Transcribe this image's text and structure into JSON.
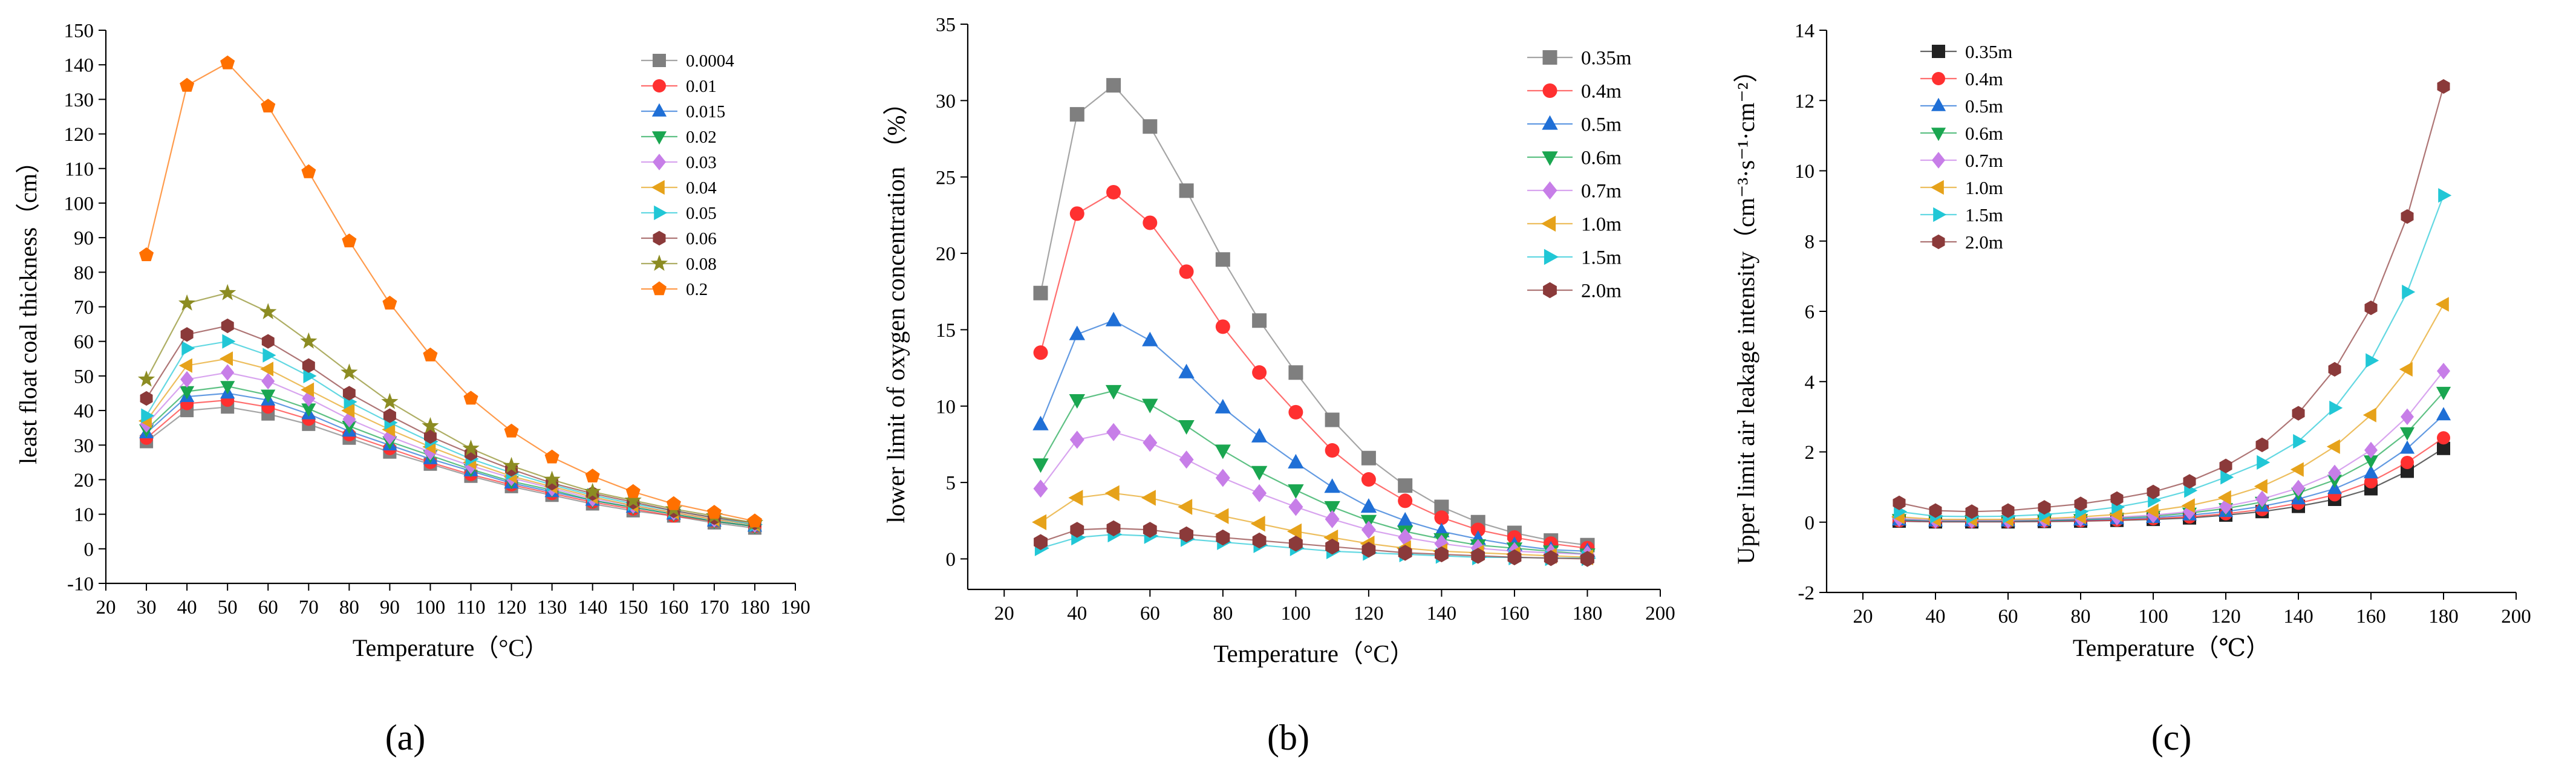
{
  "figure": {
    "panel_labels": [
      "(a)",
      "(b)",
      "(c)"
    ]
  },
  "chart_data": [
    {
      "panel": "(a)",
      "type": "line",
      "title": "",
      "xlabel": "Temperature（°C）",
      "ylabel": "least float coal thickness（cm）",
      "xlim": [
        20,
        190
      ],
      "ylim": [
        -10,
        150
      ],
      "xticks": [
        20,
        30,
        40,
        50,
        60,
        70,
        80,
        90,
        100,
        110,
        120,
        130,
        140,
        150,
        160,
        170,
        180,
        190
      ],
      "yticks": [
        -10,
        0,
        10,
        20,
        30,
        40,
        50,
        60,
        70,
        80,
        90,
        100,
        110,
        120,
        130,
        140,
        150
      ],
      "x": [
        30,
        40,
        50,
        60,
        70,
        80,
        90,
        100,
        110,
        120,
        130,
        140,
        150,
        160,
        170,
        180
      ],
      "legend_position": "top-right",
      "series": [
        {
          "name": "0.0004",
          "marker": "square",
          "color": "#7f7f7f",
          "values": [
            31,
            40,
            41,
            39,
            36,
            32,
            28,
            24.5,
            21,
            18,
            15.5,
            13,
            11,
            9.5,
            7.5,
            6
          ]
        },
        {
          "name": "0.01",
          "marker": "circle",
          "color": "#ff3030",
          "values": [
            32,
            42,
            43,
            41,
            37.5,
            33,
            29,
            25,
            21.5,
            18.5,
            16,
            13.5,
            11.5,
            9.5,
            8,
            6.5
          ]
        },
        {
          "name": "0.015",
          "marker": "triangle-up",
          "color": "#1f6fd6",
          "values": [
            33.5,
            44,
            45,
            43,
            39,
            34,
            30,
            26,
            22.5,
            19,
            16.5,
            14,
            12,
            10,
            8,
            6.5
          ]
        },
        {
          "name": "0.02",
          "marker": "triangle-down",
          "color": "#1aa650",
          "values": [
            34.5,
            45.5,
            47,
            44.5,
            40.5,
            35.5,
            31,
            27,
            23,
            19.5,
            17,
            14,
            12,
            10,
            8,
            6.5
          ]
        },
        {
          "name": "0.03",
          "marker": "diamond",
          "color": "#c77ee8",
          "values": [
            36,
            49,
            51,
            48.5,
            43.5,
            37.5,
            32.5,
            28,
            24,
            20.5,
            17.5,
            14.5,
            12.5,
            10.5,
            8.5,
            7
          ]
        },
        {
          "name": "0.04",
          "marker": "triangle-left",
          "color": "#e6a21a",
          "values": [
            37,
            53,
            55,
            52,
            46,
            40,
            34.5,
            29.5,
            25,
            21,
            18,
            15,
            12.5,
            10.5,
            8.5,
            7
          ]
        },
        {
          "name": "0.05",
          "marker": "triangle-right",
          "color": "#21c7d6",
          "values": [
            38.5,
            58,
            60,
            56,
            50,
            42.5,
            36.5,
            31,
            26,
            22,
            18.5,
            15.5,
            13,
            11,
            9,
            7
          ]
        },
        {
          "name": "0.06",
          "marker": "hexagon",
          "color": "#8b3a3a",
          "values": [
            43.5,
            62,
            64.5,
            60,
            53,
            45,
            38.5,
            32.5,
            27.5,
            23,
            19,
            16,
            13.5,
            11,
            9,
            7.5
          ]
        },
        {
          "name": "0.08",
          "marker": "star",
          "color": "#8c8c22",
          "values": [
            49,
            71,
            74,
            68.5,
            60,
            51,
            42.5,
            35.5,
            29,
            24,
            20,
            16.5,
            14,
            11.5,
            9.5,
            7.5
          ]
        },
        {
          "name": "0.2",
          "marker": "pentagon",
          "color": "#ff7000",
          "values": [
            85,
            134,
            140.5,
            128,
            109,
            89,
            71,
            56,
            43.5,
            34,
            26.5,
            21,
            16.5,
            13,
            10.5,
            8
          ]
        }
      ]
    },
    {
      "panel": "(b)",
      "type": "line",
      "title": "",
      "xlabel": "Temperature（°C）",
      "ylabel": "lower limit of oxygen concentration （%）",
      "xlim": [
        10,
        200
      ],
      "ylim": [
        -2,
        35
      ],
      "xticks": [
        20,
        40,
        60,
        80,
        100,
        120,
        140,
        160,
        180,
        200
      ],
      "yticks": [
        0,
        5,
        10,
        15,
        20,
        25,
        30,
        35
      ],
      "x": [
        30,
        40,
        50,
        60,
        70,
        80,
        90,
        100,
        110,
        120,
        130,
        140,
        150,
        160,
        170,
        180
      ],
      "legend_position": "top-right",
      "series": [
        {
          "name": "0.35m",
          "marker": "square",
          "color": "#7f7f7f",
          "values": [
            17.4,
            29.1,
            31,
            28.3,
            24.1,
            19.6,
            15.6,
            12.2,
            9.1,
            6.6,
            4.8,
            3.4,
            2.4,
            1.7,
            1.2,
            0.9
          ]
        },
        {
          "name": "0.4m",
          "marker": "circle",
          "color": "#ff3030",
          "values": [
            13.5,
            22.6,
            24,
            22,
            18.8,
            15.2,
            12.2,
            9.6,
            7.1,
            5.2,
            3.8,
            2.7,
            1.9,
            1.4,
            1,
            0.7
          ]
        },
        {
          "name": "0.5m",
          "marker": "triangle-up",
          "color": "#1f6fd6",
          "values": [
            8.8,
            14.7,
            15.6,
            14.3,
            12.2,
            9.9,
            8,
            6.3,
            4.7,
            3.4,
            2.5,
            1.8,
            1.3,
            0.9,
            0.6,
            0.5
          ]
        },
        {
          "name": "0.6m",
          "marker": "triangle-down",
          "color": "#1aa650",
          "values": [
            6.2,
            10.4,
            11,
            10.1,
            8.7,
            7.1,
            5.7,
            4.5,
            3.4,
            2.5,
            1.8,
            1.3,
            0.9,
            0.7,
            0.5,
            0.3
          ]
        },
        {
          "name": "0.7m",
          "marker": "diamond",
          "color": "#c77ee8",
          "values": [
            4.6,
            7.8,
            8.3,
            7.6,
            6.5,
            5.3,
            4.3,
            3.4,
            2.6,
            1.9,
            1.4,
            1,
            0.7,
            0.5,
            0.4,
            0.3
          ]
        },
        {
          "name": "1.0m",
          "marker": "triangle-left",
          "color": "#e6a21a",
          "values": [
            2.4,
            4,
            4.3,
            4,
            3.4,
            2.8,
            2.3,
            1.8,
            1.4,
            1,
            0.7,
            0.5,
            0.4,
            0.3,
            0.2,
            0.1
          ]
        },
        {
          "name": "1.5m",
          "marker": "triangle-right",
          "color": "#21c7d6",
          "values": [
            0.7,
            1.4,
            1.6,
            1.5,
            1.3,
            1.1,
            0.9,
            0.7,
            0.5,
            0.4,
            0.3,
            0.2,
            0.1,
            0.1,
            0.05,
            0.05
          ]
        },
        {
          "name": "2.0m",
          "marker": "hexagon",
          "color": "#8b3a3a",
          "values": [
            1.1,
            1.9,
            2,
            1.9,
            1.6,
            1.4,
            1.2,
            1,
            0.8,
            0.6,
            0.4,
            0.3,
            0.2,
            0.1,
            0.05,
            0
          ]
        }
      ]
    },
    {
      "panel": "(c)",
      "type": "line",
      "title": "",
      "xlabel": "Temperature（℃）",
      "ylabel": "Upper limit air leakage intensity（cm⁻³·s⁻¹·cm⁻²）",
      "xlim": [
        10,
        200
      ],
      "ylim": [
        -2,
        14
      ],
      "xticks": [
        20,
        40,
        60,
        80,
        100,
        120,
        140,
        160,
        180,
        200
      ],
      "yticks": [
        -2,
        0,
        2,
        4,
        6,
        8,
        10,
        12,
        14
      ],
      "x": [
        30,
        40,
        50,
        60,
        70,
        80,
        90,
        100,
        110,
        120,
        130,
        140,
        150,
        160,
        170,
        180
      ],
      "legend_position": "top-left",
      "series": [
        {
          "name": "0.35m",
          "marker": "square",
          "color": "#222222",
          "values": [
            0.03,
            0.01,
            0.01,
            0.01,
            0.02,
            0.03,
            0.05,
            0.08,
            0.12,
            0.2,
            0.3,
            0.45,
            0.65,
            0.95,
            1.45,
            2.1
          ]
        },
        {
          "name": "0.4m",
          "marker": "circle",
          "color": "#ff3030",
          "values": [
            0.04,
            0.02,
            0.02,
            0.02,
            0.03,
            0.04,
            0.06,
            0.1,
            0.15,
            0.24,
            0.36,
            0.54,
            0.78,
            1.15,
            1.7,
            2.4
          ]
        },
        {
          "name": "0.5m",
          "marker": "triangle-up",
          "color": "#1f6fd6",
          "values": [
            0.06,
            0.03,
            0.03,
            0.03,
            0.04,
            0.06,
            0.09,
            0.13,
            0.2,
            0.3,
            0.45,
            0.66,
            0.95,
            1.4,
            2.1,
            3.05
          ]
        },
        {
          "name": "0.6m",
          "marker": "triangle-down",
          "color": "#1aa650",
          "values": [
            0.08,
            0.04,
            0.04,
            0.04,
            0.05,
            0.08,
            0.12,
            0.17,
            0.26,
            0.39,
            0.57,
            0.83,
            1.2,
            1.75,
            2.55,
            3.7
          ]
        },
        {
          "name": "0.7m",
          "marker": "diamond",
          "color": "#c77ee8",
          "values": [
            0.1,
            0.05,
            0.05,
            0.05,
            0.07,
            0.1,
            0.14,
            0.2,
            0.3,
            0.45,
            0.66,
            0.97,
            1.4,
            2.05,
            3,
            4.3
          ]
        },
        {
          "name": "1.0m",
          "marker": "triangle-left",
          "color": "#e6a21a",
          "values": [
            0.15,
            0.08,
            0.08,
            0.08,
            0.1,
            0.15,
            0.22,
            0.32,
            0.47,
            0.7,
            1.02,
            1.5,
            2.15,
            3.05,
            4.35,
            6.2
          ]
        },
        {
          "name": "1.5m",
          "marker": "triangle-right",
          "color": "#21c7d6",
          "values": [
            0.3,
            0.17,
            0.16,
            0.17,
            0.22,
            0.3,
            0.43,
            0.62,
            0.9,
            1.28,
            1.7,
            2.3,
            3.25,
            4.6,
            6.55,
            9.3
          ]
        },
        {
          "name": "2.0m",
          "marker": "hexagon",
          "color": "#8b3a3a",
          "values": [
            0.55,
            0.33,
            0.3,
            0.33,
            0.42,
            0.52,
            0.67,
            0.86,
            1.16,
            1.6,
            2.2,
            3.1,
            4.35,
            6.1,
            8.7,
            12.4
          ]
        }
      ]
    }
  ]
}
